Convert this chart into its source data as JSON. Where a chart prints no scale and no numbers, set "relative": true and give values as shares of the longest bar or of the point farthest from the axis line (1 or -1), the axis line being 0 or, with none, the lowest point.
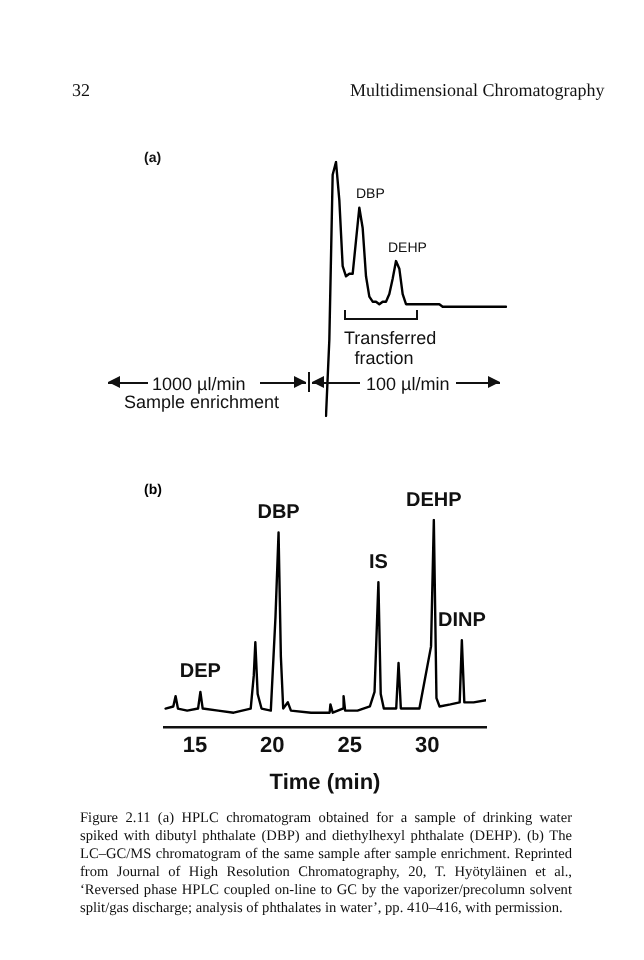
{
  "chart_data": [
    {
      "type": "line",
      "relative": true,
      "tick_labels": false,
      "marker": "none",
      "line_style": "solid",
      "color": "#000000",
      "categories": [
        null,
        null,
        null,
        null,
        null,
        null,
        null,
        null,
        null,
        null,
        null,
        null,
        null,
        null,
        null,
        null,
        null,
        null,
        null,
        null,
        null,
        null,
        null,
        null,
        null,
        null,
        null,
        null,
        null,
        null,
        null,
        null,
        null,
        null,
        null,
        null,
        null,
        null,
        null,
        null,
        null,
        null,
        null,
        null,
        null,
        null,
        null,
        null,
        null,
        null,
        null,
        null,
        null,
        null,
        null
      ],
      "values": [
        0,
        0.3,
        0.95,
        1.0,
        0.85,
        0.59,
        0.55,
        0.56,
        0.56,
        0.69,
        0.82,
        0.74,
        0.55,
        0.47,
        0.45,
        0.45,
        0.44,
        0.45,
        0.45,
        0.48,
        0.54,
        0.61,
        0.58,
        0.48,
        0.44,
        0.44,
        0.44,
        0.44,
        0.44,
        0.44,
        0.44,
        0.44,
        0.44,
        0.44,
        0.44,
        0.43,
        0.43,
        0.43,
        0.43,
        0.43,
        0.43,
        0.43,
        0.43,
        0.43,
        0.43,
        0.43,
        0.43,
        0.43,
        0.43,
        0.43,
        0.43,
        0.43,
        0.43,
        0.43,
        0.43
      ],
      "annotations": [
        "32",
        "Multidimensional Chromatography",
        "(a)",
        "DBP",
        "DEHP",
        "Transferred fraction",
        "1000 µl/min",
        "Sample enrichment",
        "100 µl/min"
      ]
    },
    {
      "type": "line",
      "title": "(b)",
      "relative": true,
      "tick_labels": "x",
      "marker": "none",
      "line_style": "solid",
      "color": "#000000",
      "xlabel": "Time (min)",
      "xlim": [
        13,
        33.8
      ],
      "xticks": [
        15,
        20,
        25,
        30
      ],
      "x": [
        13.1,
        13.6,
        13.75,
        13.9,
        14.5,
        15.2,
        15.35,
        15.5,
        16.5,
        17.5,
        18.6,
        18.8,
        18.9,
        19.05,
        19.3,
        19.9,
        20.2,
        20.4,
        20.55,
        20.7,
        21.0,
        21.2,
        22.5,
        23.7,
        23.75,
        23.9,
        24.55,
        24.6,
        24.7,
        25.5,
        26.3,
        26.6,
        26.85,
        27.0,
        27.2,
        28.0,
        28.15,
        28.3,
        29.5,
        30.25,
        30.43,
        30.6,
        30.8,
        31.5,
        32.1,
        32.24,
        32.4,
        33.0,
        33.8
      ],
      "values": [
        0.09,
        0.1,
        0.15,
        0.09,
        0.08,
        0.09,
        0.17,
        0.09,
        0.08,
        0.07,
        0.09,
        0.25,
        0.41,
        0.16,
        0.09,
        0.08,
        0.53,
        0.94,
        0.34,
        0.09,
        0.12,
        0.08,
        0.07,
        0.07,
        0.11,
        0.07,
        0.09,
        0.15,
        0.08,
        0.08,
        0.1,
        0.17,
        0.7,
        0.16,
        0.09,
        0.09,
        0.31,
        0.09,
        0.09,
        0.39,
        1.0,
        0.14,
        0.1,
        0.11,
        0.12,
        0.42,
        0.12,
        0.12,
        0.13
      ],
      "annotations": [
        {
          "text": "DEP",
          "x": 15.35,
          "y": 0.17
        },
        {
          "text": "DBP",
          "x": 20.4,
          "y": 0.94
        },
        {
          "text": "IS",
          "x": 26.85,
          "y": 0.7
        },
        {
          "text": "DEHP",
          "x": 30.43,
          "y": 1.0
        },
        {
          "text": "DINP",
          "x": 32.24,
          "y": 0.42
        },
        "Figure 2.11 (a) HPLC chromatogram obtained for a sample of drinking water spiked with dibutyl phthalate (DBP) and diethylhexyl phthalate (DEHP). (b) The LC–GC/MS chromatogram of the same sample after sample enrichment. Reprinted from Journal of High Resolution Chromatography, 20, T. Hyötyläinen et al., ‘Reversed phase HPLC coupled on-line to GC by the vaporizer/precolumn solvent split/gas discharge; analysis of phthalates in water’, pp. 410–416, with permission."
      ]
    }
  ]
}
